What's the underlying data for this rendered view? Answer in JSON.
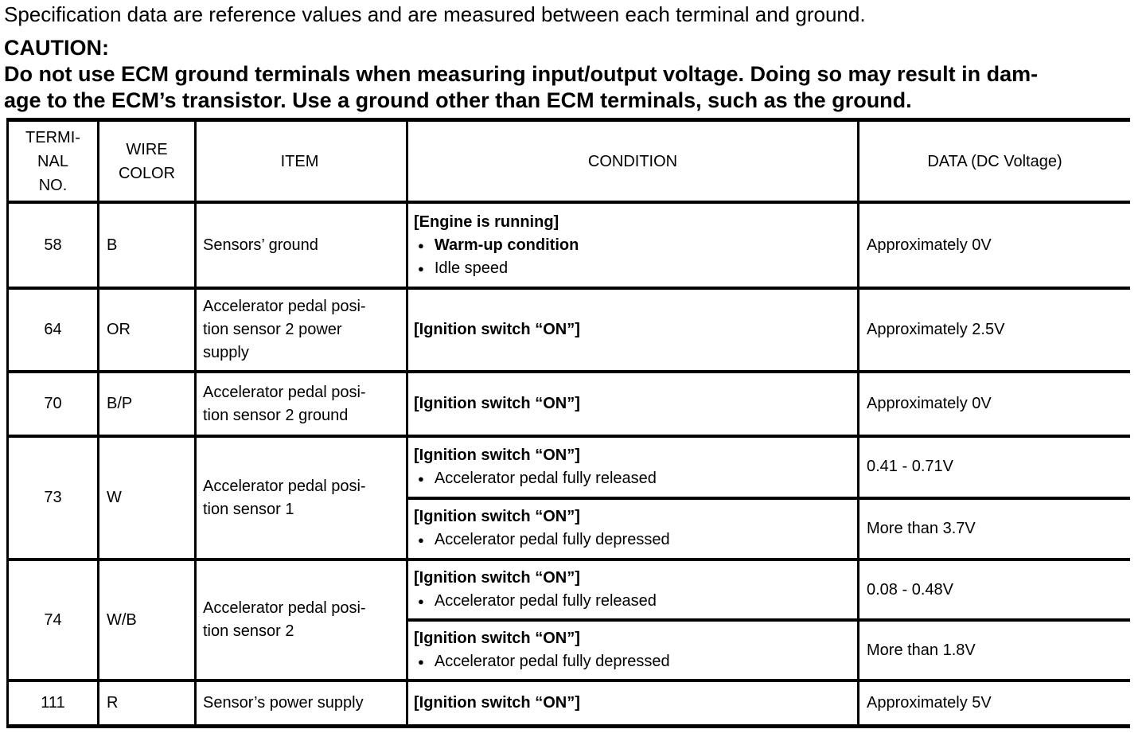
{
  "page": {
    "intro": "Specification data are reference values and are measured between each terminal and ground.",
    "caution_label": "CAUTION:",
    "caution_line1": "Do not use ECM ground terminals when measuring input/output voltage. Doing so may result in dam-",
    "caution_line2": "age to the ECM’s transistor. Use a ground other than ECM terminals, such as the ground."
  },
  "table": {
    "headers": {
      "terminal": "TERMI-\nNAL\nNO.",
      "wire": "WIRE\nCOLOR",
      "item": "ITEM",
      "condition": "CONDITION",
      "data": "DATA (DC Voltage)"
    },
    "rows": [
      {
        "terminal": "58",
        "wire": "B",
        "item": "Sensors’ ground",
        "conditions": [
          {
            "header": "[Engine is running]",
            "bullets": [
              "Warm-up condition",
              "Idle speed"
            ],
            "data": "Approximately 0V"
          }
        ]
      },
      {
        "terminal": "64",
        "wire": "OR",
        "item": "Accelerator pedal posi-\ntion sensor 2 power\nsupply",
        "conditions": [
          {
            "header": "[Ignition switch “ON”]",
            "bullets": [],
            "data": "Approximately 2.5V"
          }
        ]
      },
      {
        "terminal": "70",
        "wire": "B/P",
        "item": "Accelerator pedal posi-\ntion sensor 2 ground",
        "conditions": [
          {
            "header": "[Ignition switch “ON”]",
            "bullets": [],
            "data": "Approximately 0V"
          }
        ]
      },
      {
        "terminal": "73",
        "wire": "W",
        "item": "Accelerator pedal posi-\ntion sensor 1",
        "conditions": [
          {
            "header": "[Ignition switch “ON”]",
            "bullets": [
              "Accelerator pedal fully released"
            ],
            "data": "0.41 - 0.71V"
          },
          {
            "header": "[Ignition switch “ON”]",
            "bullets": [
              "Accelerator pedal fully depressed"
            ],
            "data": "More than 3.7V"
          }
        ]
      },
      {
        "terminal": "74",
        "wire": "W/B",
        "item": "Accelerator pedal posi-\ntion sensor 2",
        "conditions": [
          {
            "header": "[Ignition switch “ON”]",
            "bullets": [
              "Accelerator pedal fully released"
            ],
            "data": "0.08 - 0.48V"
          },
          {
            "header": "[Ignition switch “ON”]",
            "bullets": [
              "Accelerator pedal fully depressed"
            ],
            "data": "More than 1.8V"
          }
        ]
      },
      {
        "terminal": "111",
        "wire": "R",
        "item": "Sensor’s power supply",
        "conditions": [
          {
            "header": "[Ignition switch “ON”]",
            "bullets": [],
            "data": "Approximately 5V"
          }
        ]
      }
    ]
  },
  "colors": {
    "text": "#000000",
    "background": "#ffffff",
    "border": "#000000"
  }
}
